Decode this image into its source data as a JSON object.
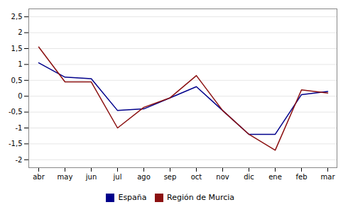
{
  "chart_data": {
    "type": "line",
    "categories": [
      "abr",
      "may",
      "jun",
      "jul",
      "ago",
      "sep",
      "oct",
      "nov",
      "dic",
      "ene",
      "feb",
      "mar"
    ],
    "series": [
      {
        "name": "España",
        "color": "#00008B",
        "values": [
          1.05,
          0.6,
          0.55,
          -0.45,
          -0.4,
          -0.05,
          0.3,
          -0.45,
          -1.2,
          -1.2,
          0.05,
          0.15
        ]
      },
      {
        "name": "Región de Murcia",
        "color": "#8B1010",
        "values": [
          1.55,
          0.45,
          0.45,
          -1.0,
          -0.35,
          -0.05,
          0.65,
          -0.45,
          -1.2,
          -1.7,
          0.2,
          0.1
        ]
      }
    ],
    "ylim": [
      -2.25,
      2.75
    ],
    "yticks": [
      -2,
      {
        "value": -1.5,
        "label": "-1,5"
      },
      -1,
      {
        "value": -0.5,
        "label": "-0,5"
      },
      0,
      {
        "value": 0.5,
        "label": "0,5"
      },
      1,
      {
        "value": 1.5,
        "label": "1,5"
      },
      2,
      {
        "value": 2.5,
        "label": "2,5"
      }
    ],
    "grid": true,
    "legend": "bottom"
  }
}
